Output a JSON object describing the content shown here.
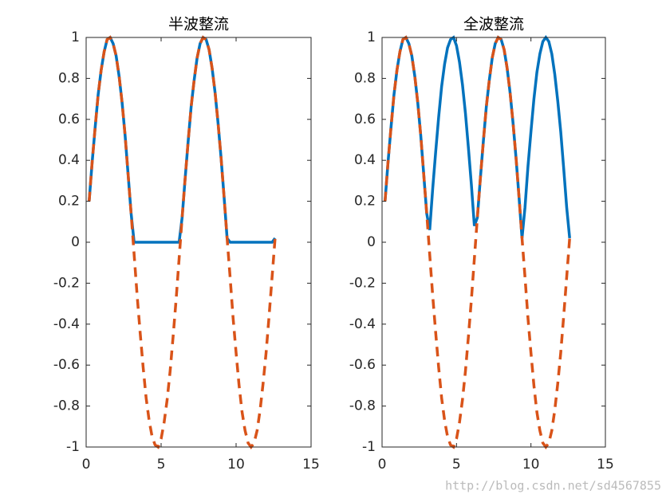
{
  "chart_data": [
    {
      "type": "line",
      "title": "半波整流",
      "x": [
        0.2,
        0.4,
        0.6,
        0.8,
        1.0,
        1.2,
        1.4,
        1.6,
        1.8,
        2.0,
        2.2,
        2.4,
        2.6,
        2.8,
        3.0,
        3.2,
        3.4,
        3.6,
        3.8,
        4.0,
        4.2,
        4.4,
        4.6,
        4.8,
        5.0,
        5.2,
        5.4,
        5.6,
        5.8,
        6.0,
        6.2,
        6.4,
        6.6,
        6.8,
        7.0,
        7.2,
        7.4,
        7.6,
        7.8,
        8.0,
        8.2,
        8.4,
        8.6,
        8.8,
        9.0,
        9.2,
        9.4,
        9.6,
        9.8,
        10.0,
        10.2,
        10.4,
        10.6,
        10.8,
        11.0,
        11.2,
        11.4,
        11.6,
        11.8,
        12.0,
        12.2,
        12.4,
        12.6
      ],
      "series": [
        {
          "color": "#0072bd",
          "line_style": "solid",
          "values": [
            0.2,
            0.39,
            0.56,
            0.72,
            0.84,
            0.93,
            0.99,
            1.0,
            0.97,
            0.91,
            0.81,
            0.68,
            0.52,
            0.33,
            0.14,
            0,
            0,
            0,
            0,
            0,
            0,
            0,
            0,
            0,
            0,
            0,
            0,
            0,
            0,
            0,
            0,
            0.12,
            0.31,
            0.49,
            0.66,
            0.79,
            0.9,
            0.97,
            1.0,
            0.99,
            0.94,
            0.85,
            0.73,
            0.58,
            0.41,
            0.22,
            0.02,
            0,
            0,
            0,
            0,
            0,
            0,
            0,
            0,
            0,
            0,
            0,
            0,
            0,
            0,
            0,
            0.02
          ]
        },
        {
          "color": "#d95319",
          "line_style": "dashed",
          "values": [
            0.2,
            0.39,
            0.56,
            0.72,
            0.84,
            0.93,
            0.99,
            1.0,
            0.97,
            0.91,
            0.81,
            0.68,
            0.52,
            0.33,
            0.14,
            -0.06,
            -0.26,
            -0.44,
            -0.61,
            -0.76,
            -0.87,
            -0.95,
            -0.99,
            -1.0,
            -0.96,
            -0.88,
            -0.77,
            -0.63,
            -0.46,
            -0.28,
            -0.08,
            0.12,
            0.31,
            0.49,
            0.66,
            0.79,
            0.9,
            0.97,
            1.0,
            0.99,
            0.94,
            0.85,
            0.73,
            0.58,
            0.41,
            0.22,
            0.02,
            -0.17,
            -0.37,
            -0.54,
            -0.7,
            -0.83,
            -0.92,
            -0.98,
            -1.0,
            -0.98,
            -0.92,
            -0.82,
            -0.69,
            -0.54,
            -0.36,
            -0.17,
            0.02
          ]
        }
      ],
      "xlim": [
        0,
        15
      ],
      "xticks": [
        0,
        5,
        10,
        15
      ],
      "ylim": [
        -1,
        1
      ],
      "yticks": [
        -1,
        -0.8,
        -0.6,
        -0.4,
        -0.2,
        0,
        0.2,
        0.4,
        0.6,
        0.8,
        1
      ],
      "grid": false
    },
    {
      "type": "line",
      "title": "全波整流",
      "x": [
        0.2,
        0.4,
        0.6,
        0.8,
        1.0,
        1.2,
        1.4,
        1.6,
        1.8,
        2.0,
        2.2,
        2.4,
        2.6,
        2.8,
        3.0,
        3.2,
        3.4,
        3.6,
        3.8,
        4.0,
        4.2,
        4.4,
        4.6,
        4.8,
        5.0,
        5.2,
        5.4,
        5.6,
        5.8,
        6.0,
        6.2,
        6.4,
        6.6,
        6.8,
        7.0,
        7.2,
        7.4,
        7.6,
        7.8,
        8.0,
        8.2,
        8.4,
        8.6,
        8.8,
        9.0,
        9.2,
        9.4,
        9.6,
        9.8,
        10.0,
        10.2,
        10.4,
        10.6,
        10.8,
        11.0,
        11.2,
        11.4,
        11.6,
        11.8,
        12.0,
        12.2,
        12.4,
        12.6
      ],
      "series": [
        {
          "color": "#0072bd",
          "line_style": "solid",
          "values": [
            0.2,
            0.39,
            0.56,
            0.72,
            0.84,
            0.93,
            0.99,
            1.0,
            0.97,
            0.91,
            0.81,
            0.68,
            0.52,
            0.33,
            0.14,
            0.06,
            0.26,
            0.44,
            0.61,
            0.76,
            0.87,
            0.95,
            0.99,
            1.0,
            0.96,
            0.88,
            0.77,
            0.63,
            0.46,
            0.28,
            0.08,
            0.12,
            0.31,
            0.49,
            0.66,
            0.79,
            0.9,
            0.97,
            1.0,
            0.99,
            0.94,
            0.85,
            0.73,
            0.58,
            0.41,
            0.22,
            0.02,
            0.17,
            0.37,
            0.54,
            0.7,
            0.83,
            0.92,
            0.98,
            1.0,
            0.98,
            0.92,
            0.82,
            0.69,
            0.54,
            0.36,
            0.17,
            0.02
          ]
        },
        {
          "color": "#d95319",
          "line_style": "dashed",
          "values": [
            0.2,
            0.39,
            0.56,
            0.72,
            0.84,
            0.93,
            0.99,
            1.0,
            0.97,
            0.91,
            0.81,
            0.68,
            0.52,
            0.33,
            0.14,
            -0.06,
            -0.26,
            -0.44,
            -0.61,
            -0.76,
            -0.87,
            -0.95,
            -0.99,
            -1.0,
            -0.96,
            -0.88,
            -0.77,
            -0.63,
            -0.46,
            -0.28,
            -0.08,
            0.12,
            0.31,
            0.49,
            0.66,
            0.79,
            0.9,
            0.97,
            1.0,
            0.99,
            0.94,
            0.85,
            0.73,
            0.58,
            0.41,
            0.22,
            0.02,
            -0.17,
            -0.37,
            -0.54,
            -0.7,
            -0.83,
            -0.92,
            -0.98,
            -1.0,
            -0.98,
            -0.92,
            -0.82,
            -0.69,
            -0.54,
            -0.36,
            -0.17,
            0.02
          ]
        }
      ],
      "xlim": [
        0,
        15
      ],
      "xticks": [
        0,
        5,
        10,
        15
      ],
      "ylim": [
        -1,
        1
      ],
      "yticks": [
        -1,
        -0.8,
        -0.6,
        -0.4,
        -0.2,
        0,
        0.2,
        0.4,
        0.6,
        0.8,
        1
      ],
      "grid": false
    }
  ],
  "watermark": "http://blog.csdn.net/sd4567855"
}
